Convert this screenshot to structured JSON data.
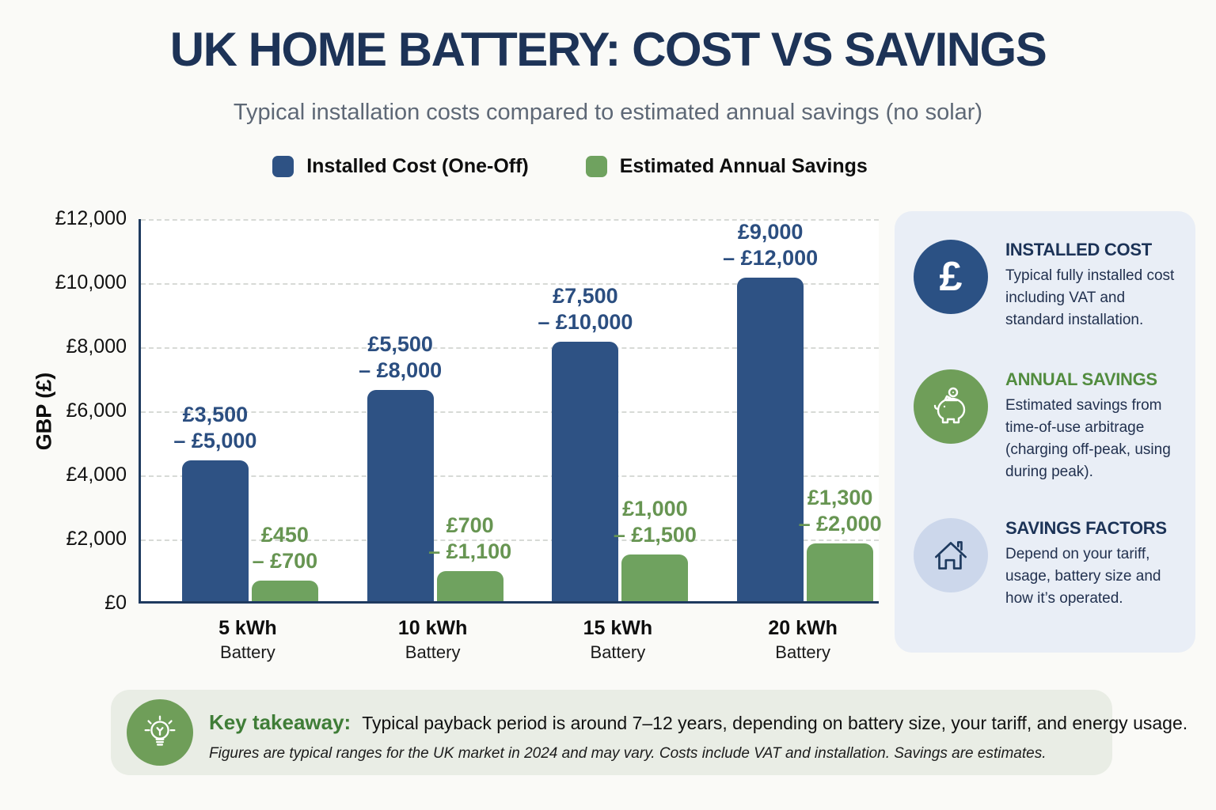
{
  "title": "UK HOME BATTERY: COST VS SAVINGS",
  "subtitle": "Typical installation costs compared to estimated annual savings (no solar)",
  "legend": [
    {
      "label": "Installed Cost (One-Off)",
      "color": "#2e5284"
    },
    {
      "label": "Estimated Annual Savings",
      "color": "#6fa25f"
    }
  ],
  "chart_data": {
    "type": "bar",
    "categories": [
      "5 kWh",
      "10 kWh",
      "15 kWh",
      "20 kWh"
    ],
    "category_sub": "Battery",
    "ylabel": "GBP (£)",
    "ylim": [
      0,
      12000
    ],
    "ytick_step": 2000,
    "yticks": [
      "£12,000",
      "£10,000",
      "£8,000",
      "£6,000",
      "£4,000",
      "£2,000",
      "£0"
    ],
    "grid": "horizontal dashed",
    "legend_position": "top",
    "series": [
      {
        "name": "Installed Cost (One-Off)",
        "color": "#2e5284",
        "label_color": "#2b4e80",
        "values": [
          4400,
          6600,
          8100,
          10100
        ],
        "range_labels": [
          [
            "£3,500",
            "– £5,000"
          ],
          [
            "£5,500",
            "– £8,000"
          ],
          [
            "£7,500",
            "– £10,000"
          ],
          [
            "£9,000",
            "– £12,000"
          ]
        ]
      },
      {
        "name": "Estimated Annual Savings",
        "color": "#6fa25f",
        "label_color": "#679552",
        "values": [
          650,
          950,
          1450,
          1800
        ],
        "range_labels": [
          [
            "£450",
            "– £700"
          ],
          [
            "£700",
            "– £1,100"
          ],
          [
            "£1,000",
            "– £1,500"
          ],
          [
            "£1,300",
            "– £2,000"
          ]
        ]
      }
    ]
  },
  "sidebar": {
    "items": [
      {
        "icon": "pound-icon",
        "icon_bg": "#2b5184",
        "heading": "INSTALLED COST",
        "heading_color": "#1c3357",
        "body": "Typical fully installed cost including VAT and standard installation."
      },
      {
        "icon": "piggy-bank-icon",
        "icon_bg": "#6f9e59",
        "heading": "ANNUAL SAVINGS",
        "heading_color": "#528c3f",
        "body": "Estimated savings from time-of-use arbitrage (charging off-peak, using during peak)."
      },
      {
        "icon": "house-icon",
        "icon_bg": "#ccd7eb",
        "heading": "SAVINGS FACTORS",
        "heading_color": "#1c3357",
        "body": "Depend on your tariff, usage, battery size and how it’s operated."
      }
    ]
  },
  "takeaway": {
    "icon_bg": "#6f9e59",
    "heading": "Key takeaway:",
    "heading_color": "#3f7d37",
    "text": "Typical payback period is around 7–12 years, depending on battery size, your tariff, and energy usage.",
    "note": "Figures are typical ranges for the UK market in 2024 and may vary. Costs include VAT and installation. Savings are estimates."
  }
}
